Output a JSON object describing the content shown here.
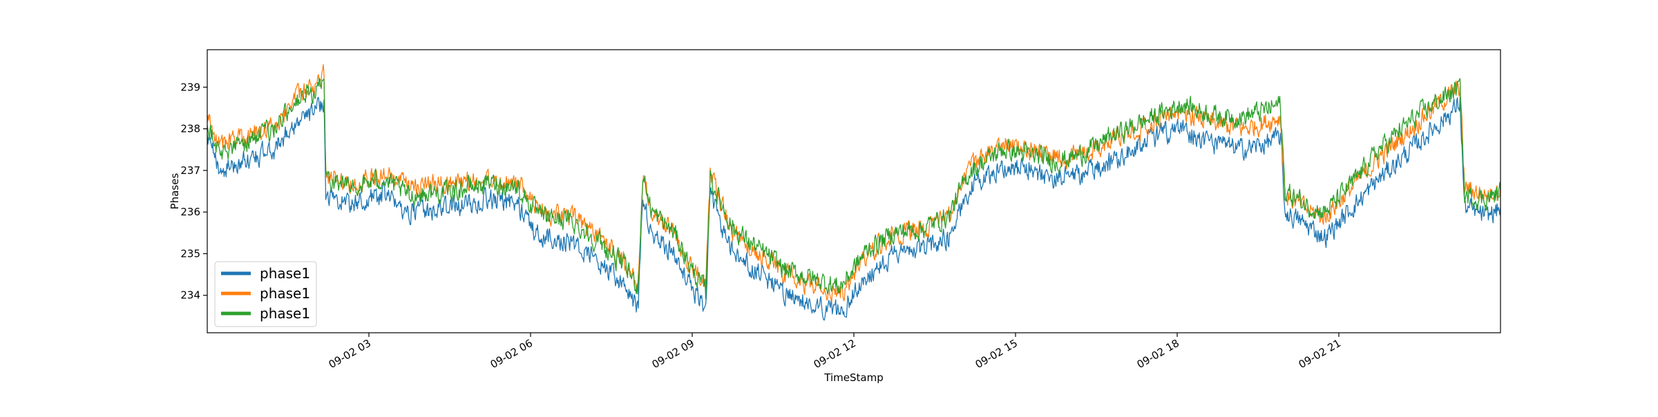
{
  "chart_data": {
    "type": "line",
    "title": "",
    "xlabel": "TimeStamp",
    "ylabel": "Phases",
    "x_range": [
      "09-02 00:00",
      "09-02 24:00"
    ],
    "ylim": [
      233.1,
      239.9
    ],
    "grid": false,
    "legend_position": "lower-left",
    "x_ticks": [
      "09-02 03",
      "09-02 06",
      "09-02 09",
      "09-02 12",
      "09-02 15",
      "09-02 18",
      "09-02 21"
    ],
    "y_ticks": [
      234,
      235,
      236,
      237,
      238,
      239
    ],
    "series": [
      {
        "name": "phase1",
        "color": "#1f77b4",
        "points": [
          [
            "09-02 00:00",
            237.7
          ],
          [
            "09-02 00:15",
            237.0
          ],
          [
            "09-02 00:45",
            237.25
          ],
          [
            "09-02 01:15",
            237.5
          ],
          [
            "09-02 01:35",
            238.1
          ],
          [
            "09-02 02:00",
            238.4
          ],
          [
            "09-02 02:10",
            238.7
          ],
          [
            "09-02 02:12",
            236.4
          ],
          [
            "09-02 02:45",
            236.2
          ],
          [
            "09-02 03:15",
            236.4
          ],
          [
            "09-02 03:45",
            236.0
          ],
          [
            "09-02 04:30",
            236.1
          ],
          [
            "09-02 05:15",
            236.3
          ],
          [
            "09-02 05:45",
            236.2
          ],
          [
            "09-02 06:10",
            235.4
          ],
          [
            "09-02 06:45",
            235.3
          ],
          [
            "09-02 07:15",
            234.8
          ],
          [
            "09-02 07:45",
            234.2
          ],
          [
            "09-02 08:00",
            233.7
          ],
          [
            "09-02 08:05",
            236.3
          ],
          [
            "09-02 08:15",
            235.5
          ],
          [
            "09-02 08:40",
            235.0
          ],
          [
            "09-02 09:00",
            234.2
          ],
          [
            "09-02 09:15",
            233.7
          ],
          [
            "09-02 09:20",
            236.4
          ],
          [
            "09-02 09:45",
            235.0
          ],
          [
            "09-02 10:15",
            234.5
          ],
          [
            "09-02 10:45",
            234.0
          ],
          [
            "09-02 11:15",
            233.8
          ],
          [
            "09-02 11:45",
            233.6
          ],
          [
            "09-02 12:15",
            234.5
          ],
          [
            "09-02 12:45",
            235.0
          ],
          [
            "09-02 13:15",
            235.1
          ],
          [
            "09-02 13:45",
            235.4
          ],
          [
            "09-02 14:10",
            236.6
          ],
          [
            "09-02 14:45",
            237.1
          ],
          [
            "09-02 15:15",
            237.0
          ],
          [
            "09-02 15:45",
            236.8
          ],
          [
            "09-02 16:15",
            236.9
          ],
          [
            "09-02 16:45",
            237.2
          ],
          [
            "09-02 17:15",
            237.6
          ],
          [
            "09-02 17:45",
            237.9
          ],
          [
            "09-02 18:05",
            238.0
          ],
          [
            "09-02 18:45",
            237.6
          ],
          [
            "09-02 19:15",
            237.5
          ],
          [
            "09-02 19:45",
            237.7
          ],
          [
            "09-02 19:55",
            237.8
          ],
          [
            "09-02 20:00",
            236.0
          ],
          [
            "09-02 20:30",
            235.6
          ],
          [
            "09-02 20:45",
            235.4
          ],
          [
            "09-02 21:15",
            236.1
          ],
          [
            "09-02 21:45",
            236.8
          ],
          [
            "09-02 22:15",
            237.4
          ],
          [
            "09-02 22:45",
            238.0
          ],
          [
            "09-02 23:15",
            238.6
          ],
          [
            "09-02 23:20",
            236.1
          ],
          [
            "09-02 23:45",
            235.9
          ],
          [
            "09-02 24:00",
            236.1
          ]
        ]
      },
      {
        "name": "phase1",
        "color": "#ff7f0e",
        "points": [
          [
            "09-02 00:00",
            238.3
          ],
          [
            "09-02 00:15",
            237.6
          ],
          [
            "09-02 00:45",
            237.85
          ],
          [
            "09-02 01:15",
            238.1
          ],
          [
            "09-02 01:35",
            238.7
          ],
          [
            "09-02 02:00",
            239.0
          ],
          [
            "09-02 02:10",
            239.3
          ],
          [
            "09-02 02:12",
            236.9
          ],
          [
            "09-02 02:45",
            236.7
          ],
          [
            "09-02 03:15",
            236.9
          ],
          [
            "09-02 03:45",
            236.6
          ],
          [
            "09-02 04:30",
            236.7
          ],
          [
            "09-02 05:15",
            236.8
          ],
          [
            "09-02 05:45",
            236.7
          ],
          [
            "09-02 06:10",
            236.0
          ],
          [
            "09-02 06:45",
            235.9
          ],
          [
            "09-02 07:15",
            235.4
          ],
          [
            "09-02 07:45",
            234.8
          ],
          [
            "09-02 08:00",
            234.3
          ],
          [
            "09-02 08:05",
            236.8
          ],
          [
            "09-02 08:15",
            236.0
          ],
          [
            "09-02 08:40",
            235.5
          ],
          [
            "09-02 09:00",
            234.7
          ],
          [
            "09-02 09:15",
            234.2
          ],
          [
            "09-02 09:20",
            236.9
          ],
          [
            "09-02 09:45",
            235.5
          ],
          [
            "09-02 10:15",
            235.0
          ],
          [
            "09-02 10:45",
            234.5
          ],
          [
            "09-02 11:15",
            234.2
          ],
          [
            "09-02 11:45",
            234.0
          ],
          [
            "09-02 12:15",
            235.0
          ],
          [
            "09-02 12:45",
            235.5
          ],
          [
            "09-02 13:15",
            235.6
          ],
          [
            "09-02 13:45",
            235.9
          ],
          [
            "09-02 14:10",
            237.1
          ],
          [
            "09-02 14:45",
            237.6
          ],
          [
            "09-02 15:15",
            237.5
          ],
          [
            "09-02 15:45",
            237.3
          ],
          [
            "09-02 16:15",
            237.4
          ],
          [
            "09-02 16:45",
            237.7
          ],
          [
            "09-02 17:15",
            238.0
          ],
          [
            "09-02 17:45",
            238.3
          ],
          [
            "09-02 18:05",
            238.4
          ],
          [
            "09-02 18:45",
            238.1
          ],
          [
            "09-02 19:15",
            238.0
          ],
          [
            "09-02 19:45",
            238.2
          ],
          [
            "09-02 19:55",
            238.3
          ],
          [
            "09-02 20:00",
            236.4
          ],
          [
            "09-02 20:30",
            236.0
          ],
          [
            "09-02 20:45",
            235.9
          ],
          [
            "09-02 21:15",
            236.6
          ],
          [
            "09-02 21:45",
            237.3
          ],
          [
            "09-02 22:15",
            237.9
          ],
          [
            "09-02 22:45",
            238.5
          ],
          [
            "09-02 23:15",
            239.0
          ],
          [
            "09-02 23:20",
            236.6
          ],
          [
            "09-02 23:45",
            236.4
          ],
          [
            "09-02 24:00",
            236.6
          ]
        ]
      },
      {
        "name": "phase1",
        "color": "#2ca02c",
        "points": [
          [
            "09-02 00:00",
            238.1
          ],
          [
            "09-02 00:15",
            237.4
          ],
          [
            "09-02 00:45",
            237.7
          ],
          [
            "09-02 01:15",
            238.0
          ],
          [
            "09-02 01:35",
            238.6
          ],
          [
            "09-02 02:00",
            238.9
          ],
          [
            "09-02 02:10",
            239.2
          ],
          [
            "09-02 02:12",
            236.8
          ],
          [
            "09-02 02:45",
            236.6
          ],
          [
            "09-02 03:15",
            236.8
          ],
          [
            "09-02 03:45",
            236.4
          ],
          [
            "09-02 04:30",
            236.5
          ],
          [
            "09-02 05:15",
            236.7
          ],
          [
            "09-02 05:45",
            236.6
          ],
          [
            "09-02 06:10",
            235.9
          ],
          [
            "09-02 06:45",
            235.8
          ],
          [
            "09-02 07:15",
            235.3
          ],
          [
            "09-02 07:45",
            234.7
          ],
          [
            "09-02 08:00",
            234.2
          ],
          [
            "09-02 08:05",
            236.9
          ],
          [
            "09-02 08:15",
            236.0
          ],
          [
            "09-02 08:40",
            235.5
          ],
          [
            "09-02 09:00",
            234.6
          ],
          [
            "09-02 09:15",
            234.1
          ],
          [
            "09-02 09:20",
            236.8
          ],
          [
            "09-02 09:45",
            235.6
          ],
          [
            "09-02 10:15",
            235.1
          ],
          [
            "09-02 10:45",
            234.6
          ],
          [
            "09-02 11:15",
            234.4
          ],
          [
            "09-02 11:45",
            234.2
          ],
          [
            "09-02 12:15",
            235.1
          ],
          [
            "09-02 12:45",
            235.5
          ],
          [
            "09-02 13:15",
            235.6
          ],
          [
            "09-02 13:45",
            235.9
          ],
          [
            "09-02 14:10",
            237.0
          ],
          [
            "09-02 14:45",
            237.5
          ],
          [
            "09-02 15:15",
            237.4
          ],
          [
            "09-02 15:45",
            237.2
          ],
          [
            "09-02 16:15",
            237.4
          ],
          [
            "09-02 16:45",
            237.8
          ],
          [
            "09-02 17:15",
            238.1
          ],
          [
            "09-02 17:45",
            238.4
          ],
          [
            "09-02 18:05",
            238.6
          ],
          [
            "09-02 18:45",
            238.3
          ],
          [
            "09-02 19:15",
            238.3
          ],
          [
            "09-02 19:45",
            238.5
          ],
          [
            "09-02 19:55",
            238.6
          ],
          [
            "09-02 20:00",
            236.5
          ],
          [
            "09-02 20:30",
            236.1
          ],
          [
            "09-02 20:45",
            236.0
          ],
          [
            "09-02 21:15",
            236.7
          ],
          [
            "09-02 21:45",
            237.5
          ],
          [
            "09-02 22:15",
            238.1
          ],
          [
            "09-02 22:45",
            238.6
          ],
          [
            "09-02 23:15",
            239.0
          ],
          [
            "09-02 23:20",
            236.4
          ],
          [
            "09-02 23:45",
            236.3
          ],
          [
            "09-02 24:00",
            236.5
          ]
        ]
      }
    ]
  }
}
